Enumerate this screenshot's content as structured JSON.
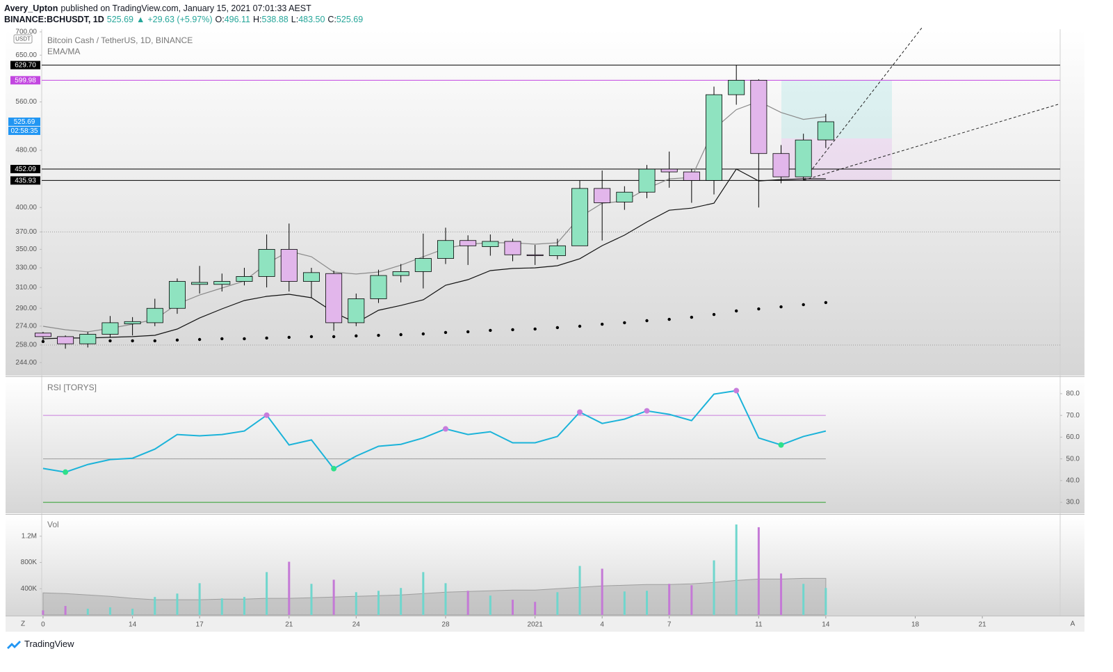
{
  "header": {
    "author": "Avery_Upton",
    "published": "published on TradingView.com, January 15, 2021 07:01:33 AEST",
    "symbol": "BINANCE:BCHUSDT, 1D",
    "last": "525.69",
    "arrow": "▲",
    "change": "+29.63 (+5.97%)",
    "ohlc": [
      {
        "key": "O:",
        "value": "496.11"
      },
      {
        "key": "H:",
        "value": "538.88"
      },
      {
        "key": "L:",
        "value": "483.50"
      },
      {
        "key": "C:",
        "value": "525.69"
      }
    ]
  },
  "chart_data": [
    {
      "type": "candlestick",
      "title": "Bitcoin Cash / TetherUS, 1D, BINANCE",
      "indicator_label": "EMA/MA",
      "currency": "USDT",
      "x": [
        0,
        1,
        2,
        3,
        4,
        5,
        6,
        7,
        8,
        9,
        10,
        11,
        12,
        13,
        14,
        15,
        16,
        17,
        18,
        19,
        20,
        21,
        22,
        23,
        24,
        25,
        26,
        27,
        28,
        29,
        30,
        31,
        32,
        33,
        34,
        35
      ],
      "open": [
        268,
        265,
        259,
        267,
        276,
        277,
        290,
        313,
        313,
        316,
        321,
        350,
        316,
        324,
        277,
        299,
        322,
        326,
        340,
        360,
        353,
        359,
        344,
        343,
        354,
        425,
        407,
        420,
        452,
        448,
        436,
        573,
        600,
        475,
        441,
        496.11
      ],
      "high": [
        269,
        266,
        269,
        283,
        282,
        299,
        319,
        332,
        324,
        330,
        367,
        380,
        330,
        327,
        304,
        328,
        334,
        368,
        375,
        366,
        367,
        362,
        355,
        362,
        436,
        450,
        428,
        458,
        478,
        452,
        588,
        630,
        602,
        488,
        506,
        538.88
      ],
      "low": [
        262,
        255,
        256,
        264,
        266,
        274,
        285,
        304,
        306,
        312,
        310,
        306,
        300,
        270,
        274,
        295,
        315,
        309,
        334,
        333,
        343,
        337,
        333,
        339,
        354,
        360,
        397,
        412,
        426,
        406,
        417,
        555,
        400,
        432,
        436,
        483.5
      ],
      "close": [
        265,
        259,
        267,
        277,
        278,
        290,
        316,
        315,
        316,
        321,
        350,
        316,
        325,
        277,
        299,
        322,
        326,
        340,
        360,
        354,
        359,
        344,
        343,
        354,
        425,
        406,
        420,
        452,
        448,
        436,
        573,
        600,
        475,
        441,
        496,
        525.69
      ],
      "up_color": "#8fe3c0",
      "down_color": "#e2b6eb",
      "overlays": [
        {
          "color": "#8a8a8a",
          "values": [
            273.9,
            270.9,
            269.1,
            272.1,
            275.7,
            280.0,
            294.0,
            302.6,
            309.4,
            316.4,
            334.3,
            348.0,
            341.9,
            325.6,
            323.5,
            325.6,
            332.8,
            341.9,
            351.1,
            355.8,
            357.4,
            357.4,
            355.8,
            357.4,
            387.9,
            405.5,
            408.2,
            424.8,
            438.2,
            440.1,
            513.7,
            546.3,
            561.0,
            541.4,
            529.7,
            534.4
          ]
        },
        {
          "color": "#111111",
          "values": [
            263.2,
            263.8,
            263.8,
            264.4,
            265.0,
            266.1,
            271.5,
            281.2,
            289.5,
            297.3,
            301.3,
            303.3,
            300.0,
            286.3,
            276.9,
            288.2,
            292.7,
            298.0,
            312.2,
            317.8,
            327.1,
            329.3,
            330.0,
            332.2,
            339.7,
            354.2,
            366.2,
            381.9,
            396.5,
            399.1,
            405.5,
            452.1,
            435.3,
            437.2,
            438.2,
            438.2
          ]
        }
      ],
      "dots": {
        "color": "#000000",
        "values": [
          260.9,
          260.9,
          260.9,
          261.5,
          261.5,
          261.5,
          262.1,
          262.6,
          263.2,
          263.2,
          263.8,
          264.4,
          265.0,
          265.0,
          265.6,
          266.1,
          266.7,
          267.3,
          268.5,
          269.1,
          270.3,
          270.9,
          271.5,
          272.7,
          273.9,
          275.7,
          277.0,
          278.8,
          280.0,
          281.9,
          284.4,
          287.6,
          289.5,
          291.4,
          293.4,
          295.4
        ]
      },
      "log": true,
      "grid": false,
      "xlim": [
        -0.06,
        45.48
      ],
      "xticks": [
        {
          "value": 0,
          "label": "0"
        },
        {
          "value": 4,
          "label": "14"
        },
        {
          "value": 7,
          "label": "17"
        },
        {
          "value": 11,
          "label": "21"
        },
        {
          "value": 14,
          "label": "24"
        },
        {
          "value": 18,
          "label": "28"
        },
        {
          "value": 22,
          "label": "2021"
        },
        {
          "value": 25,
          "label": "4"
        },
        {
          "value": 28,
          "label": "7"
        },
        {
          "value": 32,
          "label": "11"
        },
        {
          "value": 35,
          "label": "14"
        },
        {
          "value": 39,
          "label": "18"
        },
        {
          "value": 42,
          "label": "21"
        }
      ],
      "ylim": [
        234,
        706
      ],
      "yticks": [
        {
          "value": 700,
          "label": "700.00"
        },
        {
          "value": 650,
          "label": "650.00"
        },
        {
          "value": 560,
          "label": "560.00"
        },
        {
          "value": 480,
          "label": "480.00"
        },
        {
          "value": 400,
          "label": "400.00"
        },
        {
          "value": 370,
          "label": "370.00"
        },
        {
          "value": 350,
          "label": "350.00"
        },
        {
          "value": 330,
          "label": "330.00"
        },
        {
          "value": 310,
          "label": "310.00"
        },
        {
          "value": 290,
          "label": "290.00"
        },
        {
          "value": 274,
          "label": "274.00"
        },
        {
          "value": 258,
          "label": "258.00"
        },
        {
          "value": 244,
          "label": "244.00"
        }
      ],
      "dotted_levels": [
        370,
        258
      ],
      "hlines": [
        {
          "value": 629.7,
          "label": "629.70",
          "color": "#000000"
        },
        {
          "value": 599.98,
          "label": "599.98",
          "color": "#c246e0"
        },
        {
          "value": 452.09,
          "label": "452.09",
          "color": "#000000"
        },
        {
          "value": 435.93,
          "label": "435.93",
          "color": "#000000"
        }
      ],
      "last_price": {
        "value": 525.69,
        "label": "525.69",
        "color": "#2196f3"
      },
      "countdown": "02:58:35"
    },
    {
      "type": "line",
      "title": "RSI [TORYS]",
      "color": "#1bb3d9",
      "values": [
        45.6,
        43.9,
        47.4,
        49.7,
        50.3,
        54.5,
        61.2,
        60.6,
        61.2,
        62.8,
        70.1,
        56.4,
        58.7,
        45.5,
        51.3,
        55.8,
        56.7,
        59.6,
        63.8,
        61.2,
        62.5,
        57.4,
        57.4,
        60.3,
        71.5,
        66.3,
        68.3,
        72.1,
        70.5,
        67.6,
        79.8,
        81.4,
        59.6,
        56.4,
        60.3,
        62.8
      ],
      "marker_colors": [
        null,
        "#2ee08a",
        null,
        null,
        null,
        null,
        null,
        null,
        null,
        null,
        "#c77ddc",
        null,
        null,
        "#2ee08a",
        null,
        null,
        null,
        null,
        "#c77ddc",
        null,
        null,
        null,
        null,
        null,
        "#c77ddc",
        null,
        null,
        "#c77ddc",
        null,
        null,
        null,
        "#c77ddc",
        null,
        "#2ee08a",
        null,
        null
      ],
      "levels": [
        {
          "value": 70,
          "color": "#c77ddc"
        },
        {
          "value": 50,
          "color": "#9a9a9a"
        },
        {
          "value": 30,
          "color": "#2ca02c"
        }
      ],
      "ylim": [
        24.9,
        86.7
      ],
      "yticks": [
        {
          "value": 80,
          "label": "80.0"
        },
        {
          "value": 70,
          "label": "70.0"
        },
        {
          "value": 60,
          "label": "60.0"
        },
        {
          "value": 50,
          "label": "50.0"
        },
        {
          "value": 40,
          "label": "40.0"
        },
        {
          "value": 30,
          "label": "30.0"
        }
      ]
    },
    {
      "type": "bar",
      "title": "Vol",
      "up_color": "#6fd6cd",
      "down_color": "#c479d6",
      "values": [
        70000,
        137000,
        95000,
        116000,
        95000,
        274000,
        326000,
        484000,
        253000,
        274000,
        653000,
        811000,
        474000,
        537000,
        347000,
        368000,
        411000,
        653000,
        484000,
        368000,
        295000,
        232000,
        200000,
        347000,
        747000,
        705000,
        358000,
        368000,
        474000,
        453000,
        832000,
        1379000,
        1337000,
        632000,
        474000,
        411000
      ],
      "ma": {
        "color": "#9e9e9e",
        "values": [
          337000,
          326000,
          305000,
          284000,
          253000,
          232000,
          232000,
          232000,
          242000,
          242000,
          253000,
          253000,
          263000,
          274000,
          284000,
          295000,
          305000,
          326000,
          347000,
          358000,
          368000,
          379000,
          379000,
          400000,
          421000,
          442000,
          453000,
          463000,
          463000,
          474000,
          495000,
          526000,
          547000,
          547000,
          558000,
          558000
        ]
      },
      "ylim": [
        0,
        1516000
      ],
      "yticks": [
        {
          "value": 1200000,
          "label": "1.2M"
        },
        {
          "value": 800000,
          "label": "800K"
        },
        {
          "value": 400000,
          "label": "400K"
        }
      ]
    }
  ],
  "footer": {
    "left": "Z",
    "right": "A",
    "brand": "TradingView"
  }
}
